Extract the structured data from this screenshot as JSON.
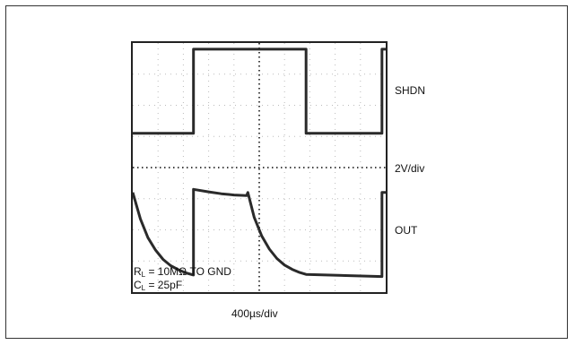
{
  "chart_data": {
    "type": "line",
    "x_divisions": 10,
    "y_divisions": 8,
    "xlabel": "400µs/div",
    "ylabel": "2V/div",
    "grid": true,
    "series": [
      {
        "name": "SHDN",
        "x": [
          0.0,
          2.4,
          2.4,
          4.35,
          4.35,
          6.85,
          6.85,
          9.85,
          9.85,
          10.0
        ],
        "y": [
          5.1,
          5.1,
          7.8,
          7.8,
          7.8,
          7.8,
          5.1,
          5.1,
          7.8,
          7.8
        ]
      },
      {
        "name": "OUT",
        "x": [
          0.0,
          0.3,
          0.6,
          0.9,
          1.2,
          1.5,
          1.8,
          2.1,
          2.4,
          2.4,
          3.0,
          3.5,
          4.0,
          4.5,
          4.55,
          4.8,
          5.1,
          5.4,
          5.7,
          6.0,
          6.3,
          6.6,
          6.85,
          9.85,
          9.85,
          10.0
        ],
        "y": [
          3.2,
          2.35,
          1.75,
          1.35,
          1.05,
          0.85,
          0.72,
          0.62,
          0.55,
          3.3,
          3.22,
          3.16,
          3.12,
          3.1,
          3.2,
          2.4,
          1.8,
          1.38,
          1.08,
          0.87,
          0.73,
          0.63,
          0.57,
          0.5,
          3.2,
          3.2
        ]
      }
    ]
  },
  "labels": {
    "trace_top": "SHDN",
    "scale_v": "2V/div",
    "trace_bottom": "OUT",
    "scale_t": "400µs/div"
  },
  "notes": {
    "rl_main": "R",
    "rl_sub": "L",
    "rl_rest": " = 10MΩ TO GND",
    "cl_main": "C",
    "cl_sub": "L",
    "cl_rest": " = 25pF"
  }
}
